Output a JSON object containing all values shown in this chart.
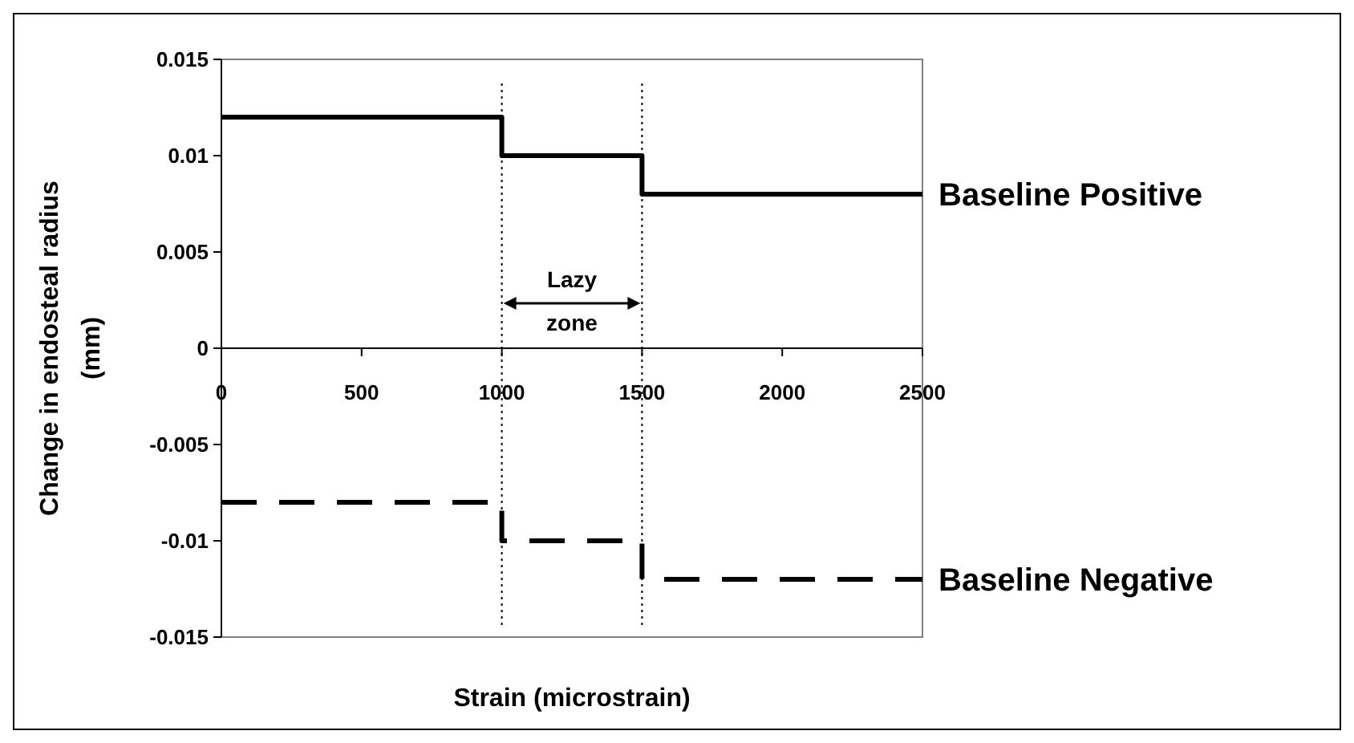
{
  "chart_data": {
    "type": "step",
    "xlabel": "Strain (microstrain)",
    "ylabel": "Change in endosteal radius (mm)",
    "x": [
      0,
      1000,
      1500,
      2500
    ],
    "xlim": [
      0,
      2500
    ],
    "xticks": [
      0,
      500,
      1000,
      1500,
      2000,
      2500
    ],
    "ylim": [
      -0.015,
      0.015
    ],
    "yticks": [
      -0.015,
      -0.01,
      -0.005,
      0,
      0.005,
      0.01,
      0.015
    ],
    "series": [
      {
        "name": "Baseline Positive",
        "color": "#000000",
        "line_style": "solid",
        "values": [
          0.012,
          0.01,
          0.008,
          0.008
        ]
      },
      {
        "name": "Baseline Negative",
        "color": "#000000",
        "line_style": "dashed",
        "values": [
          -0.008,
          -0.01,
          -0.012,
          -0.012
        ]
      }
    ],
    "ref_lines": [
      {
        "axis": "x",
        "value": 1000,
        "color": "#000000",
        "line_style": "dotted"
      },
      {
        "axis": "x",
        "value": 1500,
        "color": "#000000",
        "line_style": "dotted"
      }
    ],
    "annotations": [
      "Lazy zone"
    ],
    "grid": false
  }
}
